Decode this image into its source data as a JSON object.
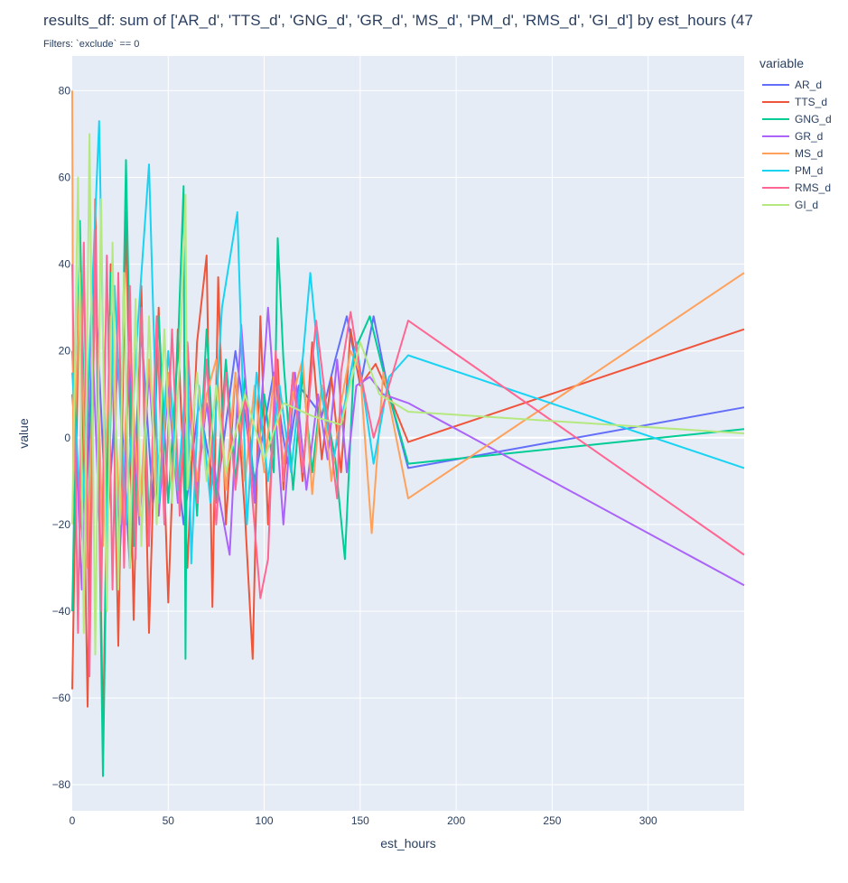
{
  "title": "results_df: sum of ['AR_d', 'TTS_d', 'GNG_d', 'GR_d', 'MS_d', 'PM_d', 'RMS_d', 'GI_d']  by est_hours (47",
  "subtitle": "Filters: `exclude` == 0",
  "legend": {
    "title": "variable"
  },
  "chart_data": {
    "type": "line",
    "xlabel": "est_hours",
    "ylabel": "value",
    "xlim": [
      0,
      350
    ],
    "ylim": [
      -86,
      88
    ],
    "x_ticks": [
      0,
      50,
      100,
      150,
      200,
      250,
      300
    ],
    "y_ticks": [
      -80,
      -60,
      -40,
      -20,
      0,
      20,
      40,
      60,
      80
    ],
    "grid": true,
    "legend_position": "right",
    "series": [
      {
        "name": "AR_d",
        "color": "#636efa",
        "x": [
          0,
          6,
          12,
          18,
          24,
          30,
          36,
          42,
          50,
          58,
          66,
          75,
          85,
          95,
          105,
          112,
          118,
          125,
          130,
          137,
          143,
          150,
          157,
          165,
          175,
          350
        ],
        "y": [
          10,
          -28,
          35,
          -22,
          18,
          -30,
          25,
          -15,
          12,
          -20,
          8,
          -14,
          20,
          -10,
          15,
          -6,
          12,
          8,
          5,
          18,
          28,
          12,
          28,
          10,
          -7,
          7
        ]
      },
      {
        "name": "TTS_d",
        "color": "#ef553b",
        "x": [
          0,
          4,
          8,
          12,
          16,
          20,
          24,
          28,
          32,
          36,
          40,
          45,
          50,
          55,
          60,
          65,
          70,
          73,
          76,
          80,
          85,
          90,
          94,
          98,
          102,
          107,
          110,
          115,
          120,
          125,
          130,
          135,
          140,
          145,
          150,
          158,
          165,
          175,
          350
        ],
        "y": [
          -58,
          45,
          -62,
          55,
          -70,
          40,
          -48,
          52,
          -42,
          35,
          -45,
          30,
          -38,
          25,
          -30,
          22,
          42,
          -39,
          37,
          -20,
          15,
          -18,
          -51,
          28,
          -20,
          18,
          -12,
          15,
          -10,
          22,
          -5,
          14,
          -8,
          25,
          12,
          17,
          10,
          -1,
          25
        ]
      },
      {
        "name": "GNG_d",
        "color": "#00cc96",
        "x": [
          0,
          4,
          8,
          12,
          16,
          20,
          24,
          28,
          32,
          36,
          40,
          45,
          50,
          55,
          58,
          59,
          60,
          65,
          70,
          75,
          80,
          85,
          90,
          95,
          100,
          105,
          107,
          110,
          115,
          120,
          125,
          130,
          137,
          142,
          147,
          155,
          165,
          175,
          350
        ],
        "y": [
          -40,
          50,
          -30,
          45,
          -78,
          38,
          -35,
          64,
          -25,
          30,
          -20,
          28,
          -15,
          20,
          58,
          -51,
          22,
          -18,
          25,
          -15,
          18,
          -10,
          14,
          -12,
          10,
          -8,
          46,
          18,
          -12,
          15,
          -8,
          12,
          -5,
          -28,
          20,
          28,
          10,
          -6,
          2
        ]
      },
      {
        "name": "GR_d",
        "color": "#ab63fa",
        "x": [
          0,
          5,
          10,
          15,
          20,
          25,
          30,
          35,
          40,
          45,
          50,
          55,
          60,
          65,
          70,
          75,
          82,
          88,
          95,
          102,
          110,
          116,
          122,
          128,
          133,
          138,
          143,
          148,
          155,
          162,
          175,
          350
        ],
        "y": [
          20,
          -35,
          28,
          -30,
          22,
          -25,
          18,
          -20,
          15,
          -18,
          12,
          -15,
          10,
          -12,
          8,
          -10,
          -27,
          26,
          -15,
          30,
          -20,
          15,
          -12,
          10,
          -5,
          18,
          -8,
          12,
          14,
          10,
          8,
          -34
        ]
      },
      {
        "name": "MS_d",
        "color": "#ffa15a",
        "x": [
          0,
          0.5,
          4,
          8,
          12,
          16,
          20,
          25,
          30,
          35,
          40,
          45,
          50,
          55,
          60,
          65,
          70,
          75,
          80,
          85,
          90,
          95,
          100,
          105,
          110,
          115,
          120,
          125,
          130,
          135,
          140,
          145,
          150,
          156,
          162,
          175,
          350
        ],
        "y": [
          80,
          -10,
          38,
          -30,
          32,
          -25,
          28,
          -20,
          22,
          -18,
          18,
          -15,
          15,
          -12,
          12,
          -10,
          10,
          18,
          -12,
          15,
          -10,
          12,
          -8,
          14,
          -6,
          10,
          18,
          -13,
          12,
          -10,
          8,
          20,
          15,
          -22,
          15,
          -14,
          38
        ]
      },
      {
        "name": "PM_d",
        "color": "#19d3f3",
        "x": [
          0,
          5,
          10,
          14,
          18,
          22,
          28,
          34,
          40,
          45,
          50,
          55,
          60,
          62,
          66,
          72,
          78,
          86,
          91,
          96,
          102,
          108,
          114,
          120,
          124,
          130,
          136,
          142,
          148,
          157,
          165,
          175,
          350
        ],
        "y": [
          15,
          -20,
          30,
          73,
          -25,
          35,
          -20,
          25,
          63,
          -15,
          20,
          -12,
          18,
          -29,
          12,
          -15,
          30,
          52,
          -20,
          15,
          -10,
          12,
          -8,
          18,
          38,
          10,
          -5,
          8,
          22,
          -6,
          14,
          19,
          -7
        ]
      },
      {
        "name": "RMS_d",
        "color": "#ff6692",
        "x": [
          0,
          3,
          6,
          9,
          12,
          15,
          18,
          21,
          24,
          27,
          30,
          33,
          36,
          40,
          44,
          48,
          52,
          56,
          60,
          65,
          70,
          75,
          80,
          85,
          90,
          94,
          98,
          102,
          106,
          110,
          115,
          120,
          127,
          133,
          138,
          140,
          145,
          150,
          157,
          165,
          175,
          350
        ],
        "y": [
          40,
          -45,
          45,
          -55,
          48,
          -40,
          42,
          -35,
          38,
          -30,
          35,
          -28,
          30,
          -25,
          28,
          -20,
          25,
          -18,
          22,
          -15,
          18,
          -20,
          15,
          -12,
          10,
          -15,
          -37,
          -28,
          20,
          -10,
          15,
          -8,
          27,
          5,
          -14,
          15,
          29,
          15,
          0,
          12,
          27,
          -27
        ]
      },
      {
        "name": "GI_d",
        "color": "#b6e880",
        "x": [
          0,
          3,
          6,
          9,
          12,
          15,
          18,
          21,
          24,
          27,
          30,
          33,
          36,
          40,
          44,
          48,
          52,
          56,
          59,
          60,
          65,
          70,
          75,
          80,
          90,
          100,
          110,
          125,
          140,
          150,
          160,
          175,
          350
        ],
        "y": [
          -20,
          60,
          -45,
          70,
          -50,
          55,
          -40,
          45,
          -35,
          38,
          -30,
          32,
          -25,
          28,
          -20,
          25,
          -15,
          18,
          56,
          -12,
          15,
          -10,
          12,
          -8,
          10,
          -5,
          8,
          5,
          3,
          22,
          10,
          6,
          1
        ]
      }
    ]
  }
}
